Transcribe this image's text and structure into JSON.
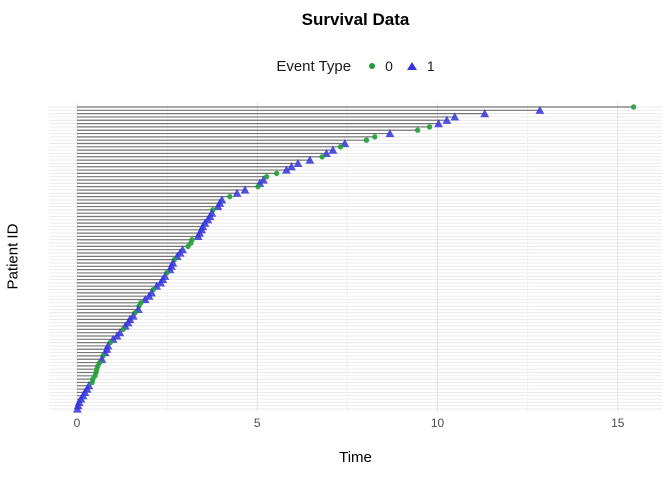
{
  "title": "Survival Data",
  "legend": {
    "title": "Event Type",
    "items": [
      {
        "label": "0",
        "shape": "circle",
        "color": "#1f9e38"
      },
      {
        "label": "1",
        "shape": "triangle",
        "color": "#3434d9"
      }
    ]
  },
  "axes": {
    "xlabel": "Time",
    "ylabel": "Patient ID",
    "x_tick_labels": [
      "0",
      "5",
      "10",
      "15"
    ]
  },
  "colors": {
    "censored_point": "#1f9e38",
    "event_point": "#3434d9",
    "segment": "#757575",
    "grid_major": "#e2e2e2",
    "grid_minor": "#f0f0f0",
    "grid_row": "#e9e9e9",
    "background": "#ffffff"
  },
  "chart_data": {
    "type": "scatter",
    "subtype": "survival-lollipop (horizontal segment from 0 to time per patient, marker = event type)",
    "title": "Survival Data",
    "xlabel": "Time",
    "ylabel": "Patient ID",
    "xlim": [
      -0.8,
      16.2
    ],
    "x_ticks": [
      0,
      5,
      10,
      15
    ],
    "x_minor_ticks": [
      2.5,
      7.5,
      12.5
    ],
    "grid": true,
    "legend_position": "top",
    "series_note": "patients ordered top row (longest time) to bottom row (shortest); event 0 = censored (green circle), 1 = event (blue triangle)",
    "patients": [
      {
        "time": 15.44,
        "event": 0
      },
      {
        "time": 12.84,
        "event": 1
      },
      {
        "time": 11.31,
        "event": 1
      },
      {
        "time": 10.48,
        "event": 1
      },
      {
        "time": 10.26,
        "event": 1
      },
      {
        "time": 10.03,
        "event": 1
      },
      {
        "time": 9.78,
        "event": 0
      },
      {
        "time": 9.45,
        "event": 0
      },
      {
        "time": 8.68,
        "event": 1
      },
      {
        "time": 8.26,
        "event": 0
      },
      {
        "time": 8.03,
        "event": 0
      },
      {
        "time": 7.43,
        "event": 1
      },
      {
        "time": 7.31,
        "event": 0
      },
      {
        "time": 7.1,
        "event": 1
      },
      {
        "time": 6.92,
        "event": 1
      },
      {
        "time": 6.8,
        "event": 0
      },
      {
        "time": 6.46,
        "event": 1
      },
      {
        "time": 6.13,
        "event": 1
      },
      {
        "time": 5.95,
        "event": 1
      },
      {
        "time": 5.81,
        "event": 1
      },
      {
        "time": 5.54,
        "event": 0
      },
      {
        "time": 5.26,
        "event": 0
      },
      {
        "time": 5.17,
        "event": 1
      },
      {
        "time": 5.07,
        "event": 1
      },
      {
        "time": 5.02,
        "event": 0
      },
      {
        "time": 4.66,
        "event": 1
      },
      {
        "time": 4.44,
        "event": 1
      },
      {
        "time": 4.24,
        "event": 0
      },
      {
        "time": 4.02,
        "event": 1
      },
      {
        "time": 3.96,
        "event": 1
      },
      {
        "time": 3.91,
        "event": 1
      },
      {
        "time": 3.77,
        "event": 0
      },
      {
        "time": 3.74,
        "event": 1
      },
      {
        "time": 3.69,
        "event": 1
      },
      {
        "time": 3.63,
        "event": 1
      },
      {
        "time": 3.55,
        "event": 1
      },
      {
        "time": 3.49,
        "event": 1
      },
      {
        "time": 3.46,
        "event": 1
      },
      {
        "time": 3.4,
        "event": 1
      },
      {
        "time": 3.36,
        "event": 1
      },
      {
        "time": 3.19,
        "event": 0
      },
      {
        "time": 3.16,
        "event": 0
      },
      {
        "time": 3.08,
        "event": 0
      },
      {
        "time": 2.93,
        "event": 1
      },
      {
        "time": 2.86,
        "event": 1
      },
      {
        "time": 2.78,
        "event": 1
      },
      {
        "time": 2.7,
        "event": 0
      },
      {
        "time": 2.66,
        "event": 1
      },
      {
        "time": 2.62,
        "event": 1
      },
      {
        "time": 2.58,
        "event": 1
      },
      {
        "time": 2.49,
        "event": 0
      },
      {
        "time": 2.44,
        "event": 1
      },
      {
        "time": 2.38,
        "event": 1
      },
      {
        "time": 2.32,
        "event": 1
      },
      {
        "time": 2.21,
        "event": 1
      },
      {
        "time": 2.12,
        "event": 0
      },
      {
        "time": 2.07,
        "event": 1
      },
      {
        "time": 2.0,
        "event": 1
      },
      {
        "time": 1.89,
        "event": 1
      },
      {
        "time": 1.77,
        "event": 0
      },
      {
        "time": 1.72,
        "event": 0
      },
      {
        "time": 1.7,
        "event": 1
      },
      {
        "time": 1.61,
        "event": 0
      },
      {
        "time": 1.56,
        "event": 1
      },
      {
        "time": 1.47,
        "event": 1
      },
      {
        "time": 1.42,
        "event": 1
      },
      {
        "time": 1.34,
        "event": 1
      },
      {
        "time": 1.28,
        "event": 0
      },
      {
        "time": 1.19,
        "event": 1
      },
      {
        "time": 1.11,
        "event": 1
      },
      {
        "time": 1.0,
        "event": 1
      },
      {
        "time": 0.92,
        "event": 0
      },
      {
        "time": 0.86,
        "event": 1
      },
      {
        "time": 0.83,
        "event": 1
      },
      {
        "time": 0.78,
        "event": 1
      },
      {
        "time": 0.72,
        "event": 0
      },
      {
        "time": 0.69,
        "event": 1
      },
      {
        "time": 0.63,
        "event": 0
      },
      {
        "time": 0.58,
        "event": 0
      },
      {
        "time": 0.55,
        "event": 0
      },
      {
        "time": 0.53,
        "event": 0
      },
      {
        "time": 0.5,
        "event": 0
      },
      {
        "time": 0.44,
        "event": 0
      },
      {
        "time": 0.42,
        "event": 0
      },
      {
        "time": 0.33,
        "event": 1
      },
      {
        "time": 0.28,
        "event": 1
      },
      {
        "time": 0.22,
        "event": 1
      },
      {
        "time": 0.17,
        "event": 1
      },
      {
        "time": 0.11,
        "event": 1
      },
      {
        "time": 0.06,
        "event": 1
      },
      {
        "time": 0.03,
        "event": 1
      },
      {
        "time": 0.01,
        "event": 1
      }
    ]
  }
}
